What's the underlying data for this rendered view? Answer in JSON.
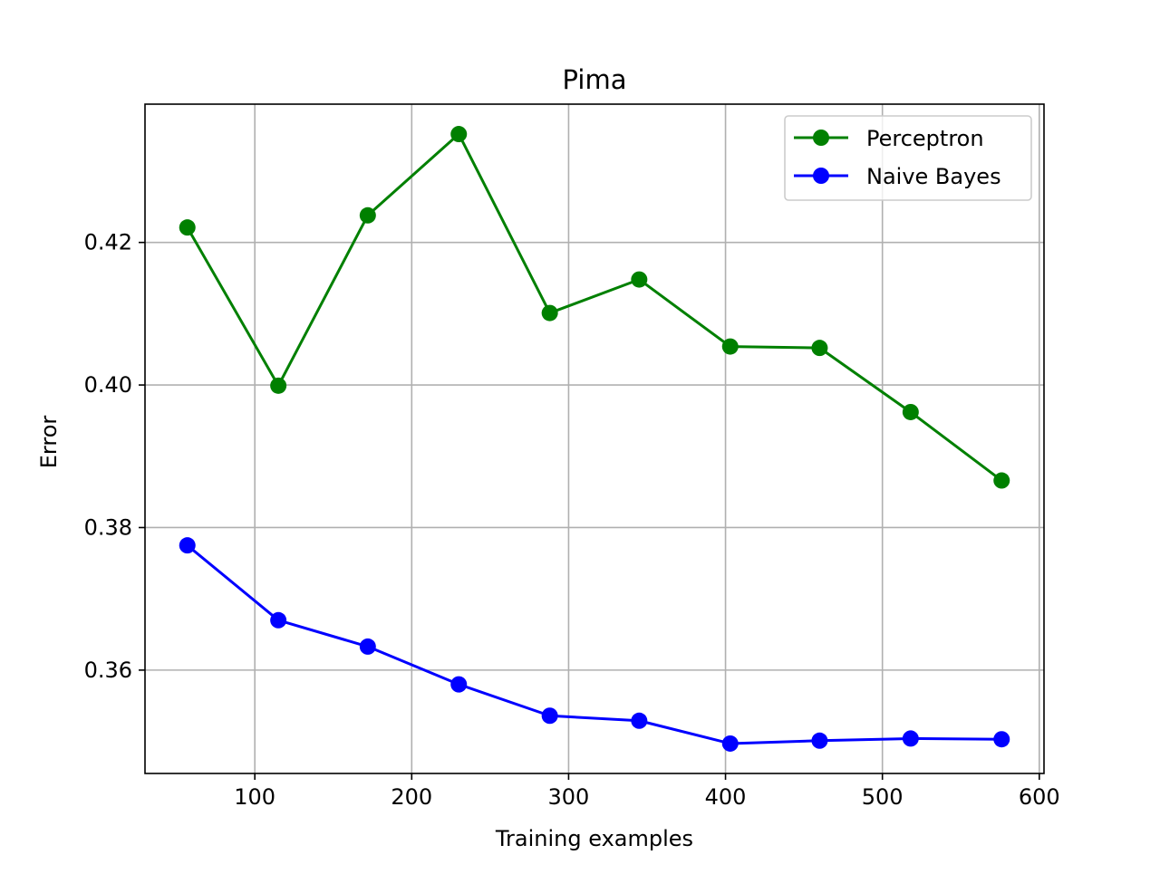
{
  "chart_data": {
    "type": "line",
    "title": "Pima",
    "xlabel": "Training examples",
    "ylabel": "Error",
    "xlim": [
      30,
      603
    ],
    "ylim": [
      0.3455,
      0.4394
    ],
    "xticks": [
      100,
      200,
      300,
      400,
      500,
      600
    ],
    "xtick_labels": [
      "100",
      "200",
      "300",
      "400",
      "500",
      "600"
    ],
    "yticks": [
      0.36,
      0.38,
      0.4,
      0.42
    ],
    "ytick_labels": [
      "0.36",
      "0.38",
      "0.40",
      "0.42"
    ],
    "grid": true,
    "legend_position": "top-right",
    "x": [
      57,
      115,
      172,
      230,
      288,
      345,
      403,
      460,
      518,
      576
    ],
    "series": [
      {
        "name": "Perceptron",
        "color": "#008000",
        "marker": "circle",
        "values": [
          0.4221,
          0.3999,
          0.4238,
          0.4352,
          0.4101,
          0.4148,
          0.4054,
          0.4052,
          0.3962,
          0.3866
        ]
      },
      {
        "name": "Naive Bayes",
        "color": "#0000ff",
        "marker": "circle",
        "values": [
          0.3775,
          0.367,
          0.3633,
          0.358,
          0.3536,
          0.3529,
          0.3497,
          0.3501,
          0.3504,
          0.3503
        ]
      }
    ]
  }
}
